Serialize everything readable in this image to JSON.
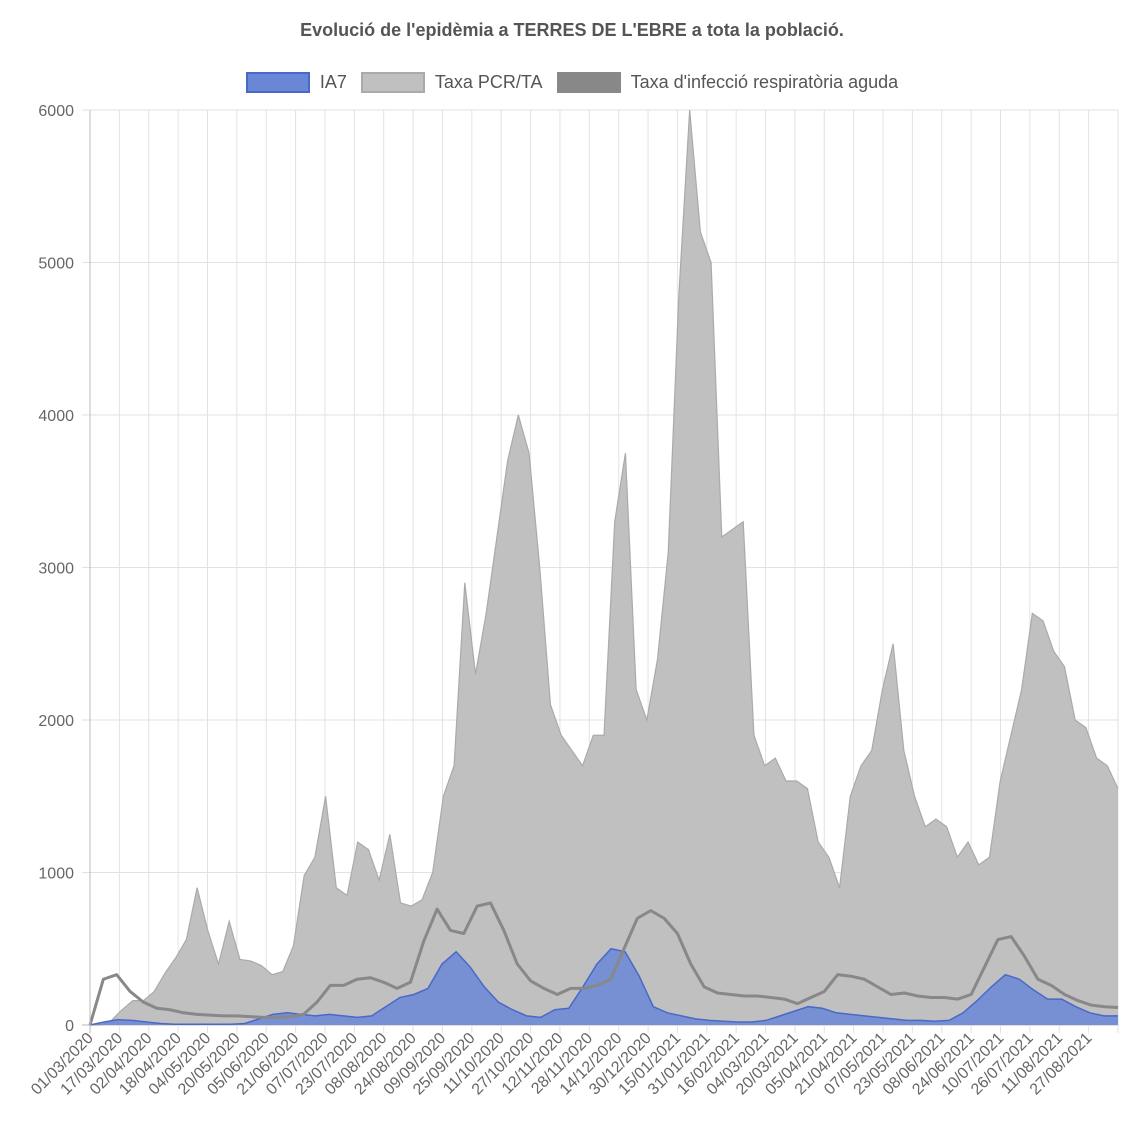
{
  "chart_data": {
    "type": "area",
    "title": "Evolució de l'epidèmia a TERRES DE L'EBRE a tota la població.",
    "legend_position": "top",
    "grid": true,
    "ylim": [
      0,
      6000
    ],
    "y_ticks": [
      0,
      1000,
      2000,
      3000,
      4000,
      5000,
      6000
    ],
    "x_tick_labels": [
      "01/03/2020",
      "17/03/2020",
      "02/04/2020",
      "18/04/2020",
      "04/05/2020",
      "20/05/2020",
      "05/06/2020",
      "21/06/2020",
      "07/07/2020",
      "23/07/2020",
      "08/08/2020",
      "24/08/2020",
      "09/09/2020",
      "25/09/2020",
      "11/10/2020",
      "27/10/2020",
      "12/11/2020",
      "28/11/2020",
      "14/12/2020",
      "30/12/2020",
      "15/01/2021",
      "31/01/2021",
      "16/02/2021",
      "04/03/2021",
      "20/03/2021",
      "05/04/2021",
      "21/04/2021",
      "07/05/2021",
      "23/05/2021",
      "08/06/2021",
      "24/06/2021",
      "10/07/2021",
      "26/07/2021",
      "11/08/2021",
      "27/08/2021"
    ],
    "series": [
      {
        "name": "Taxa PCR/TA",
        "fill": "#c0c0c0",
        "stroke": "#aaaaaa",
        "values": [
          0,
          0,
          30,
          100,
          160,
          160,
          220,
          340,
          440,
          560,
          900,
          620,
          400,
          680,
          430,
          420,
          390,
          330,
          350,
          520,
          980,
          1100,
          1500,
          900,
          850,
          1200,
          1150,
          950,
          1250,
          800,
          780,
          820,
          1000,
          1500,
          1700,
          2900,
          2300,
          2700,
          3200,
          3700,
          4000,
          3750,
          3000,
          2100,
          1900,
          1800,
          1700,
          1900,
          1900,
          3300,
          3750,
          2200,
          2000,
          2400,
          3100,
          4800,
          6000,
          5200,
          5000,
          3200,
          3250,
          3300,
          1900,
          1700,
          1750,
          1600,
          1600,
          1550,
          1200,
          1100,
          900,
          1500,
          1700,
          1800,
          2200,
          2500,
          1800,
          1500,
          1300,
          1350,
          1300,
          1100,
          1200,
          1050,
          1100,
          1600,
          1900,
          2200,
          2700,
          2650,
          2450,
          2350,
          2000,
          1950,
          1750,
          1700,
          1550
        ]
      },
      {
        "name": "Taxa d'infecció respiratòria aguda",
        "fill": "#888888",
        "stroke": "#888888",
        "values": [
          0,
          300,
          330,
          220,
          150,
          110,
          100,
          80,
          70,
          65,
          60,
          60,
          55,
          50,
          50,
          55,
          70,
          150,
          260,
          260,
          300,
          310,
          280,
          240,
          280,
          550,
          760,
          620,
          600,
          780,
          800,
          620,
          400,
          290,
          240,
          200,
          240,
          240,
          260,
          300,
          500,
          700,
          750,
          700,
          600,
          400,
          250,
          210,
          200,
          190,
          190,
          180,
          170,
          140,
          180,
          220,
          330,
          320,
          300,
          250,
          200,
          210,
          190,
          180,
          180,
          170,
          200,
          380,
          560,
          580,
          450,
          300,
          260,
          200,
          160,
          130,
          120,
          115
        ]
      },
      {
        "name": "IA7",
        "fill": "#6a86d6",
        "stroke": "#4a68c8",
        "values": [
          0,
          20,
          35,
          30,
          20,
          10,
          5,
          5,
          5,
          5,
          5,
          10,
          40,
          70,
          80,
          70,
          60,
          70,
          60,
          50,
          60,
          120,
          180,
          200,
          240,
          400,
          480,
          380,
          250,
          150,
          100,
          60,
          50,
          100,
          110,
          250,
          400,
          500,
          480,
          320,
          120,
          80,
          60,
          40,
          30,
          25,
          20,
          20,
          30,
          60,
          90,
          120,
          110,
          80,
          70,
          60,
          50,
          40,
          30,
          30,
          25,
          30,
          80,
          160,
          250,
          330,
          300,
          230,
          170,
          170,
          120,
          80,
          60,
          60
        ]
      }
    ]
  }
}
